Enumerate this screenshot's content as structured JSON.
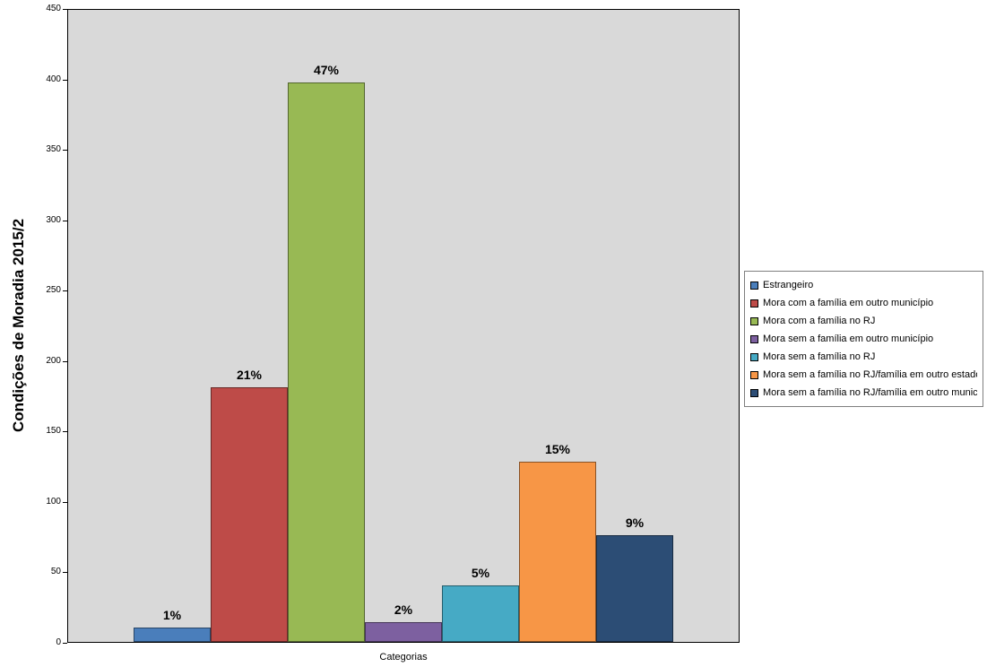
{
  "chart_data": {
    "type": "bar",
    "title": "Condições de Moradia 2015/2",
    "xlabel": "Categorias",
    "ylabel": "",
    "ylim": [
      0,
      450
    ],
    "yticks": [
      0,
      50,
      100,
      150,
      200,
      250,
      300,
      350,
      400,
      450
    ],
    "grid": false,
    "legend_position": "right",
    "plot_bg": "#D9D9D9",
    "series": [
      {
        "name": "Estrangeiro",
        "value": 10,
        "label": "1%",
        "color": "#4A7EBB"
      },
      {
        "name": "Mora com a família em outro município",
        "value": 181,
        "label": "21%",
        "color": "#BE4B48"
      },
      {
        "name": "Mora com a família no RJ",
        "value": 398,
        "label": "47%",
        "color": "#98B954"
      },
      {
        "name": "Mora sem a família em outro município",
        "value": 14,
        "label": "2%",
        "color": "#7D60A0"
      },
      {
        "name": "Mora sem a família no RJ",
        "value": 40,
        "label": "5%",
        "color": "#46AAC5"
      },
      {
        "name": "Mora sem a família no RJ/família em outro estado",
        "value": 128,
        "label": "15%",
        "color": "#F79646"
      },
      {
        "name": "Mora sem a família no RJ/família em outro município",
        "value": 76,
        "label": "9%",
        "color": "#2C4D75"
      }
    ]
  }
}
